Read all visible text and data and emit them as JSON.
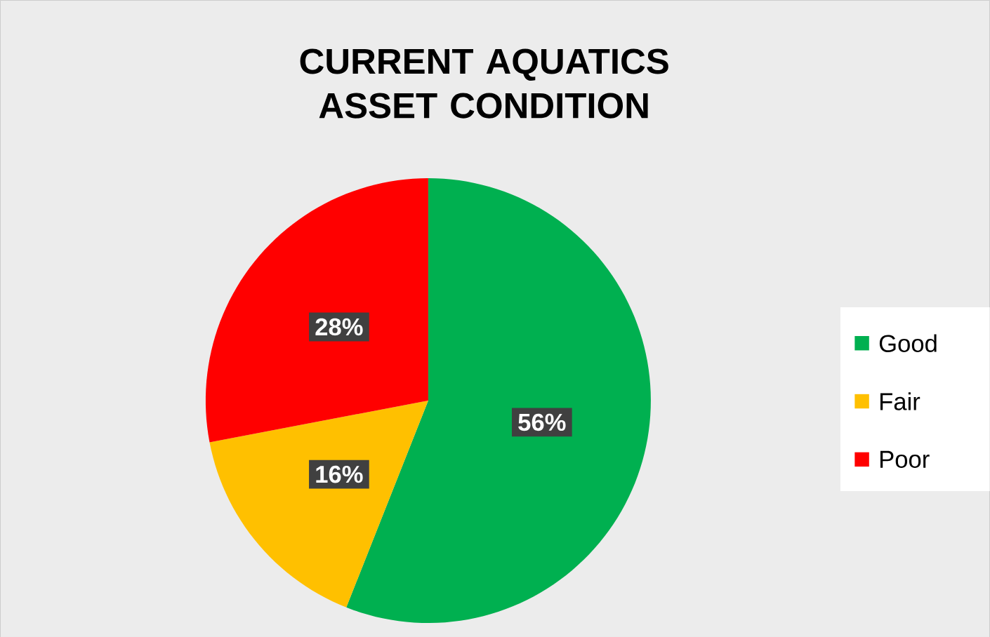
{
  "chart_data": {
    "type": "pie",
    "title": "CURRENT AQUATICS ASSET CONDITION",
    "categories": [
      "Good",
      "Fair",
      "Poor"
    ],
    "values": [
      56,
      16,
      28
    ],
    "colors": [
      "#00b050",
      "#ffc000",
      "#ff0000"
    ],
    "value_labels": [
      "56%",
      "16%",
      "28%"
    ],
    "legend": "right"
  }
}
